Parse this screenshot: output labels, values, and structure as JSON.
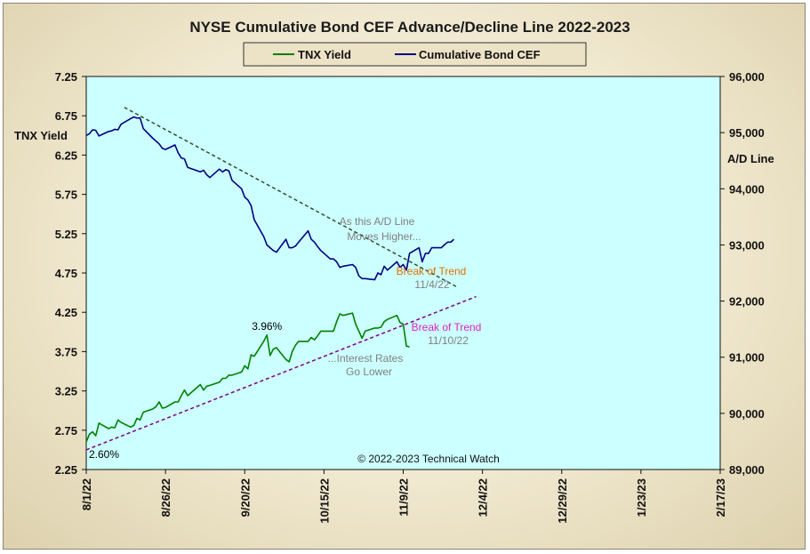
{
  "chart_data": {
    "type": "line",
    "title": "NYSE Cumulative  Bond CEF Advance/Decline  Line 2022-2023",
    "left_axis_label": "TNX  Yield",
    "right_axis_label": "A/D Line",
    "left_ylim": [
      2.25,
      7.25
    ],
    "right_ylim": [
      89000,
      96000
    ],
    "left_ticks": [
      "7.25",
      "6.75",
      "6.25",
      "5.75",
      "5.25",
      "4.75",
      "4.25",
      "3.75",
      "3.25",
      "2.75",
      "2.25"
    ],
    "right_ticks": [
      "96,000",
      "95,000",
      "94,000",
      "93,000",
      "92,000",
      "91,000",
      "90,000",
      "89,000"
    ],
    "x_ticks": [
      "8/1/22",
      "8/26/22",
      "9/20/22",
      "10/15/22",
      "11/9/22",
      "12/4/22",
      "12/29/22",
      "1/23/23",
      "2/17/23"
    ],
    "xlim": [
      "2022-08-01",
      "2023-02-17"
    ],
    "grid": false,
    "legend_position": "top-center",
    "colors": {
      "plot_bg": "#ccffff",
      "tnx": "#008000",
      "cef": "#000080",
      "trend_upper": "#2f4f2f",
      "trend_lower": "#800080",
      "ann_gray": "#808080",
      "ann_orange": "#e07000",
      "ann_magenta": "#e020c0"
    },
    "series": [
      {
        "name": "TNX Yield",
        "axis": "left",
        "points": [
          [
            "2022-08-01",
            2.6
          ],
          [
            "2022-08-02",
            2.7
          ],
          [
            "2022-08-03",
            2.73
          ],
          [
            "2022-08-04",
            2.68
          ],
          [
            "2022-08-05",
            2.84
          ],
          [
            "2022-08-08",
            2.77
          ],
          [
            "2022-08-09",
            2.79
          ],
          [
            "2022-08-10",
            2.78
          ],
          [
            "2022-08-11",
            2.88
          ],
          [
            "2022-08-12",
            2.85
          ],
          [
            "2022-08-15",
            2.79
          ],
          [
            "2022-08-16",
            2.81
          ],
          [
            "2022-08-17",
            2.9
          ],
          [
            "2022-08-18",
            2.88
          ],
          [
            "2022-08-19",
            2.98
          ],
          [
            "2022-08-22",
            3.02
          ],
          [
            "2022-08-23",
            3.05
          ],
          [
            "2022-08-24",
            3.11
          ],
          [
            "2022-08-25",
            3.03
          ],
          [
            "2022-08-26",
            3.04
          ],
          [
            "2022-08-29",
            3.11
          ],
          [
            "2022-08-30",
            3.11
          ],
          [
            "2022-08-31",
            3.19
          ],
          [
            "2022-09-01",
            3.26
          ],
          [
            "2022-09-02",
            3.19
          ],
          [
            "2022-09-06",
            3.33
          ],
          [
            "2022-09-07",
            3.26
          ],
          [
            "2022-09-08",
            3.31
          ],
          [
            "2022-09-09",
            3.32
          ],
          [
            "2022-09-12",
            3.36
          ],
          [
            "2022-09-13",
            3.41
          ],
          [
            "2022-09-14",
            3.41
          ],
          [
            "2022-09-15",
            3.45
          ],
          [
            "2022-09-16",
            3.45
          ],
          [
            "2022-09-19",
            3.49
          ],
          [
            "2022-09-20",
            3.57
          ],
          [
            "2022-09-21",
            3.53
          ],
          [
            "2022-09-22",
            3.71
          ],
          [
            "2022-09-23",
            3.69
          ],
          [
            "2022-09-26",
            3.88
          ],
          [
            "2022-09-27",
            3.96
          ],
          [
            "2022-09-28",
            3.7
          ],
          [
            "2022-09-29",
            3.78
          ],
          [
            "2022-09-30",
            3.8
          ],
          [
            "2022-10-03",
            3.65
          ],
          [
            "2022-10-04",
            3.62
          ],
          [
            "2022-10-05",
            3.75
          ],
          [
            "2022-10-06",
            3.83
          ],
          [
            "2022-10-07",
            3.88
          ],
          [
            "2022-10-10",
            3.88
          ],
          [
            "2022-10-11",
            3.93
          ],
          [
            "2022-10-12",
            3.9
          ],
          [
            "2022-10-13",
            3.95
          ],
          [
            "2022-10-14",
            4.01
          ],
          [
            "2022-10-17",
            4.01
          ],
          [
            "2022-10-18",
            4.01
          ],
          [
            "2022-10-19",
            4.13
          ],
          [
            "2022-10-20",
            4.23
          ],
          [
            "2022-10-21",
            4.21
          ],
          [
            "2022-10-24",
            4.24
          ],
          [
            "2022-10-25",
            4.1
          ],
          [
            "2022-10-26",
            4.01
          ],
          [
            "2022-10-27",
            3.92
          ],
          [
            "2022-10-28",
            4.01
          ],
          [
            "2022-10-31",
            4.05
          ],
          [
            "2022-11-01",
            4.05
          ],
          [
            "2022-11-02",
            4.06
          ],
          [
            "2022-11-03",
            4.13
          ],
          [
            "2022-11-04",
            4.16
          ],
          [
            "2022-11-07",
            4.21
          ],
          [
            "2022-11-08",
            4.12
          ],
          [
            "2022-11-09",
            4.1
          ],
          [
            "2022-11-10",
            3.82
          ],
          [
            "2022-11-11",
            3.81
          ]
        ]
      },
      {
        "name": "Cumulative Bond CEF",
        "axis": "right",
        "points": [
          [
            "2022-08-01",
            94950
          ],
          [
            "2022-08-02",
            94980
          ],
          [
            "2022-08-03",
            95050
          ],
          [
            "2022-08-04",
            95040
          ],
          [
            "2022-08-05",
            94940
          ],
          [
            "2022-08-08",
            95020
          ],
          [
            "2022-08-09",
            95030
          ],
          [
            "2022-08-10",
            95060
          ],
          [
            "2022-08-11",
            95050
          ],
          [
            "2022-08-12",
            95150
          ],
          [
            "2022-08-15",
            95250
          ],
          [
            "2022-08-16",
            95280
          ],
          [
            "2022-08-17",
            95260
          ],
          [
            "2022-08-18",
            95260
          ],
          [
            "2022-08-19",
            95070
          ],
          [
            "2022-08-22",
            94900
          ],
          [
            "2022-08-23",
            94850
          ],
          [
            "2022-08-24",
            94800
          ],
          [
            "2022-08-25",
            94720
          ],
          [
            "2022-08-26",
            94700
          ],
          [
            "2022-08-29",
            94780
          ],
          [
            "2022-08-30",
            94640
          ],
          [
            "2022-08-31",
            94550
          ],
          [
            "2022-09-01",
            94530
          ],
          [
            "2022-09-02",
            94380
          ],
          [
            "2022-09-06",
            94300
          ],
          [
            "2022-09-07",
            94330
          ],
          [
            "2022-09-08",
            94250
          ],
          [
            "2022-09-09",
            94200
          ],
          [
            "2022-09-12",
            94350
          ],
          [
            "2022-09-13",
            94300
          ],
          [
            "2022-09-14",
            94340
          ],
          [
            "2022-09-15",
            94320
          ],
          [
            "2022-09-16",
            94150
          ],
          [
            "2022-09-19",
            94000
          ],
          [
            "2022-09-20",
            93850
          ],
          [
            "2022-09-21",
            93800
          ],
          [
            "2022-09-22",
            93700
          ],
          [
            "2022-09-23",
            93450
          ],
          [
            "2022-09-26",
            93150
          ],
          [
            "2022-09-27",
            93000
          ],
          [
            "2022-09-28",
            92950
          ],
          [
            "2022-09-29",
            92900
          ],
          [
            "2022-09-30",
            92870
          ],
          [
            "2022-10-03",
            93100
          ],
          [
            "2022-10-04",
            92950
          ],
          [
            "2022-10-05",
            92950
          ],
          [
            "2022-10-06",
            92980
          ],
          [
            "2022-10-07",
            93050
          ],
          [
            "2022-10-10",
            93250
          ],
          [
            "2022-10-11",
            93100
          ],
          [
            "2022-10-12",
            93050
          ],
          [
            "2022-10-13",
            92970
          ],
          [
            "2022-10-14",
            92900
          ],
          [
            "2022-10-17",
            92750
          ],
          [
            "2022-10-18",
            92750
          ],
          [
            "2022-10-19",
            92700
          ],
          [
            "2022-10-20",
            92600
          ],
          [
            "2022-10-21",
            92620
          ],
          [
            "2022-10-24",
            92650
          ],
          [
            "2022-10-25",
            92600
          ],
          [
            "2022-10-26",
            92450
          ],
          [
            "2022-10-27",
            92400
          ],
          [
            "2022-10-28",
            92400
          ],
          [
            "2022-10-31",
            92380
          ],
          [
            "2022-11-01",
            92500
          ],
          [
            "2022-11-02",
            92470
          ],
          [
            "2022-11-03",
            92620
          ],
          [
            "2022-11-04",
            92550
          ],
          [
            "2022-11-07",
            92700
          ],
          [
            "2022-11-08",
            92600
          ],
          [
            "2022-11-09",
            92650
          ],
          [
            "2022-11-10",
            92550
          ],
          [
            "2022-11-11",
            92850
          ],
          [
            "2022-11-14",
            92950
          ],
          [
            "2022-11-15",
            92700
          ],
          [
            "2022-11-16",
            92850
          ],
          [
            "2022-11-17",
            92850
          ],
          [
            "2022-11-18",
            92950
          ],
          [
            "2022-11-21",
            92950
          ],
          [
            "2022-11-22",
            93000
          ],
          [
            "2022-11-23",
            93050
          ],
          [
            "2022-11-24",
            93050
          ],
          [
            "2022-11-25",
            93100
          ]
        ]
      }
    ],
    "trendlines": [
      {
        "axis": "right",
        "from": [
          "2022-08-13",
          95450
        ],
        "to": [
          "2022-11-26",
          92250
        ]
      },
      {
        "axis": "left",
        "from": [
          "2022-08-01",
          2.5
        ],
        "to": [
          "2022-12-02",
          4.45
        ]
      }
    ],
    "annotations": [
      {
        "text": "3.96%",
        "anchor": [
          "2022-09-27",
          3.96
        ],
        "color": "#000000"
      },
      {
        "text": "2.60%",
        "anchor": [
          "2022-08-01",
          2.6
        ],
        "color": "#000000"
      },
      {
        "text": "As this A/D Line",
        "color": "#808080"
      },
      {
        "text": "Moves  Higher...",
        "color": "#808080"
      },
      {
        "text": "Break  of Trend",
        "color": "#e07000"
      },
      {
        "text": "11/4/22",
        "color": "#808080"
      },
      {
        "text": "Break  of Trend",
        "color": "#e020c0"
      },
      {
        "text": "11/10/22",
        "color": "#808080"
      },
      {
        "text": "...Interest Rates",
        "color": "#808080"
      },
      {
        "text": "Go Lower",
        "color": "#808080"
      }
    ],
    "copyright": "© 2022-2023  Technical  Watch"
  }
}
